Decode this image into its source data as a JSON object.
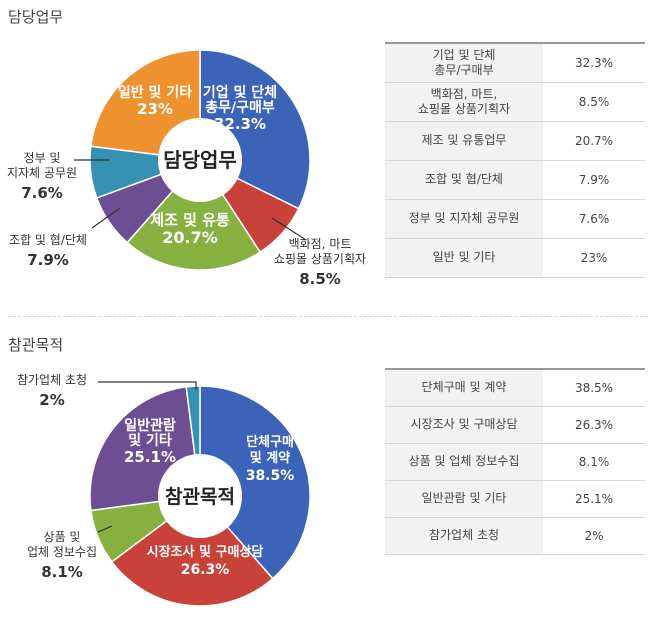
{
  "sections": [
    {
      "title": "담당업무",
      "center_label": "담당업무",
      "rows": [
        {
          "label": "기업 및 단체\n총무/구매부",
          "value": "32.3%"
        },
        {
          "label": "백화점, 마트,\n쇼핑몰 상품기획자",
          "value": "8.5%"
        },
        {
          "label": "제조 및 유통업무",
          "value": "20.7%"
        },
        {
          "label": "조합 및 협/단체",
          "value": "7.9%"
        },
        {
          "label": "정부 및 지자체 공무원",
          "value": "7.6%"
        },
        {
          "label": "일반 및 기타",
          "value": "23%"
        }
      ]
    },
    {
      "title": "참관목적",
      "center_label": "참관목적",
      "rows": [
        {
          "label": "단체구매 및 계약",
          "value": "38.5%"
        },
        {
          "label": "시장조사 및 구매상담",
          "value": "26.3%"
        },
        {
          "label": "상품 및 업체 정보수집",
          "value": "8.1%"
        },
        {
          "label": "일반관람 및 기타",
          "value": "25.1%"
        },
        {
          "label": "참가업체 초청",
          "value": "2%"
        }
      ]
    }
  ],
  "chart_data": [
    {
      "type": "pie",
      "title": "담당업무",
      "slices": [
        {
          "label": "기업 및 단체 총무/구매부",
          "value": 32.3,
          "color": "#3b63b8"
        },
        {
          "label": "백화점, 마트, 쇼핑몰 상품기획자",
          "value": 8.5,
          "color": "#c9423a"
        },
        {
          "label": "제조 및 유통",
          "value": 20.7,
          "color": "#86b040"
        },
        {
          "label": "조합 및 협/단체",
          "value": 7.9,
          "color": "#6e4e93"
        },
        {
          "label": "정부 및 지자체 공무원",
          "value": 7.6,
          "color": "#3592b3"
        },
        {
          "label": "일반 및 기타",
          "value": 23,
          "color": "#ee9230"
        }
      ],
      "pie_labels": [
        {
          "lines": [
            "기업 및 단체",
            "총무/구매부"
          ],
          "pct": "32.3%",
          "inside": true
        },
        {
          "lines": [
            "백화점, 마트",
            "쇼핑몰 상품기획자"
          ],
          "pct": "8.5%",
          "inside": false
        },
        {
          "lines": [
            "제조 및 유통"
          ],
          "pct": "20.7%",
          "inside": true
        },
        {
          "lines": [
            "조합 및 협/단체"
          ],
          "pct": "7.9%",
          "inside": false
        },
        {
          "lines": [
            "정부 및",
            "지자체 공무원"
          ],
          "pct": "7.6%",
          "inside": false
        },
        {
          "lines": [
            "일반 및 기타"
          ],
          "pct": "23%",
          "inside": true
        }
      ]
    },
    {
      "type": "pie",
      "title": "참관목적",
      "slices": [
        {
          "label": "단체구매 및 계약",
          "value": 38.5,
          "color": "#3b63b8"
        },
        {
          "label": "시장조사 및 구매상담",
          "value": 26.3,
          "color": "#c9423a"
        },
        {
          "label": "상품 및 업체 정보수집",
          "value": 8.1,
          "color": "#86b040"
        },
        {
          "label": "일반관람 및 기타",
          "value": 25.1,
          "color": "#6e4e93"
        },
        {
          "label": "참가업체 초청",
          "value": 2,
          "color": "#3592b3"
        }
      ],
      "pie_labels": [
        {
          "lines": [
            "단체구매",
            "및 계약"
          ],
          "pct": "38.5%",
          "inside": true
        },
        {
          "lines": [
            "시장조사 및 구매상담"
          ],
          "pct": "26.3%",
          "inside": true
        },
        {
          "lines": [
            "상품 및",
            "업체 정보수집"
          ],
          "pct": "8.1%",
          "inside": false
        },
        {
          "lines": [
            "일반관람",
            "및 기타"
          ],
          "pct": "25.1%",
          "inside": true
        },
        {
          "lines": [
            "참가업체 초청"
          ],
          "pct": "2%",
          "inside": false
        }
      ]
    }
  ]
}
